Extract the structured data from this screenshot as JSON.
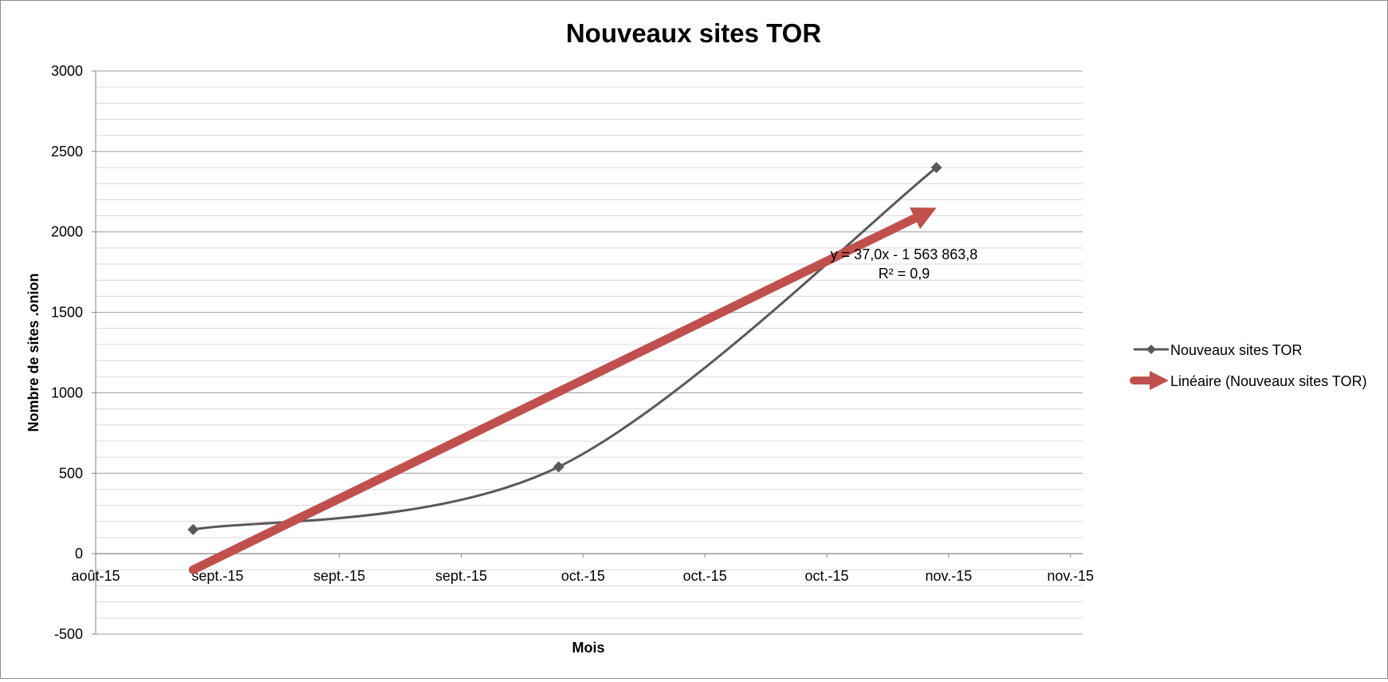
{
  "chart_data": {
    "type": "line",
    "title": "Nouveaux sites TOR",
    "xlabel": "Mois",
    "ylabel": "Nombre de sites .onion",
    "ylim": [
      -500,
      3000
    ],
    "y_major_step": 500,
    "y_minor_step": 100,
    "y_ticks": [
      "-500",
      "0",
      "500",
      "1000",
      "1500",
      "2000",
      "2500",
      "3000"
    ],
    "x_tick_labels": [
      "août-15",
      "sept.-15",
      "sept.-15",
      "sept.-15",
      "oct.-15",
      "oct.-15",
      "oct.-15",
      "nov.-15",
      "nov.-15"
    ],
    "x_range": [
      "2015-08-29",
      "2015-11-18"
    ],
    "x_tick_dates": [
      "2015-08-29",
      "2015-09-08",
      "2015-09-18",
      "2015-09-28",
      "2015-10-08",
      "2015-10-18",
      "2015-10-28",
      "2015-11-07",
      "2015-11-17"
    ],
    "grid": true,
    "legend_position": "right",
    "series": [
      {
        "name": "Nouveaux sites TOR",
        "color": "#595959",
        "marker": "diamond",
        "smooth": true,
        "points": [
          {
            "x": "2015-09-06",
            "y": 150
          },
          {
            "x": "2015-10-06",
            "y": 540
          },
          {
            "x": "2015-11-06",
            "y": 2400
          }
        ]
      }
    ],
    "trendline": {
      "name": "Linéaire (Nouveaux sites TOR)",
      "color": "#c0504d",
      "type": "linear",
      "equation": "y = 37,0x - 1 563 863,8",
      "r_squared": "R² = 0,9",
      "start": {
        "x": "2015-09-06",
        "y": -100
      },
      "end": {
        "x": "2015-11-06",
        "y": 2150
      }
    }
  }
}
